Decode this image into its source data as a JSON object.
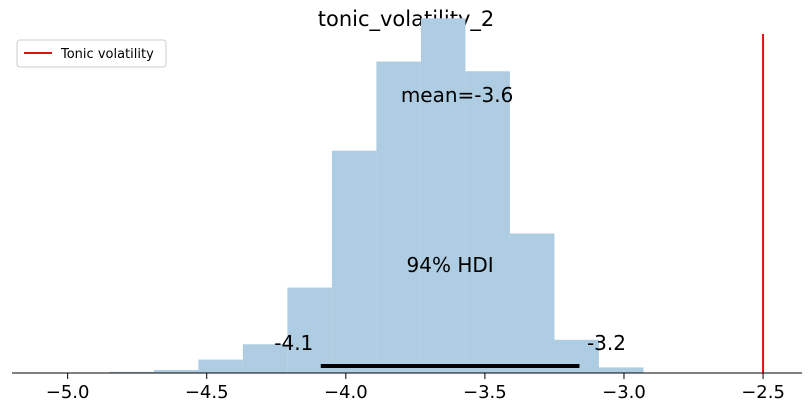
{
  "chart_data": {
    "type": "bar",
    "title": "tonic_volatility_2",
    "xlabel": "",
    "ylabel": "",
    "xlim": [
      -5.2,
      -2.36
    ],
    "ylim": [
      0,
      1.0
    ],
    "x_ticks": [
      -5.0,
      -4.5,
      -4.0,
      -3.5,
      -3.0,
      -2.5
    ],
    "x_tick_labels": [
      "−5.0",
      "−4.5",
      "−4.0",
      "−3.5",
      "−3.0",
      "−2.5"
    ],
    "bin_edges": [
      -4.85,
      -4.69,
      -4.53,
      -4.37,
      -4.21,
      -4.05,
      -3.89,
      -3.73,
      -3.57,
      -3.41,
      -3.25,
      -3.09,
      -2.93
    ],
    "values": [
      0.003,
      0.008,
      0.036,
      0.077,
      0.229,
      0.596,
      0.835,
      0.951,
      0.809,
      0.374,
      0.089,
      0.015
    ],
    "bar_color": "#aecde2",
    "hdi": {
      "low": -4.09,
      "high": -3.16,
      "low_label": "-4.1",
      "high_label": "-3.2",
      "label": "94% HDI",
      "color": "#000000"
    },
    "mean": {
      "value": -3.6,
      "label": "mean=-3.6"
    },
    "reference_line": {
      "x": -2.5,
      "color": "#e01010",
      "name": "Tonic volatility"
    },
    "legend": {
      "placement": "top-left",
      "entries": [
        "Tonic volatility"
      ]
    }
  }
}
